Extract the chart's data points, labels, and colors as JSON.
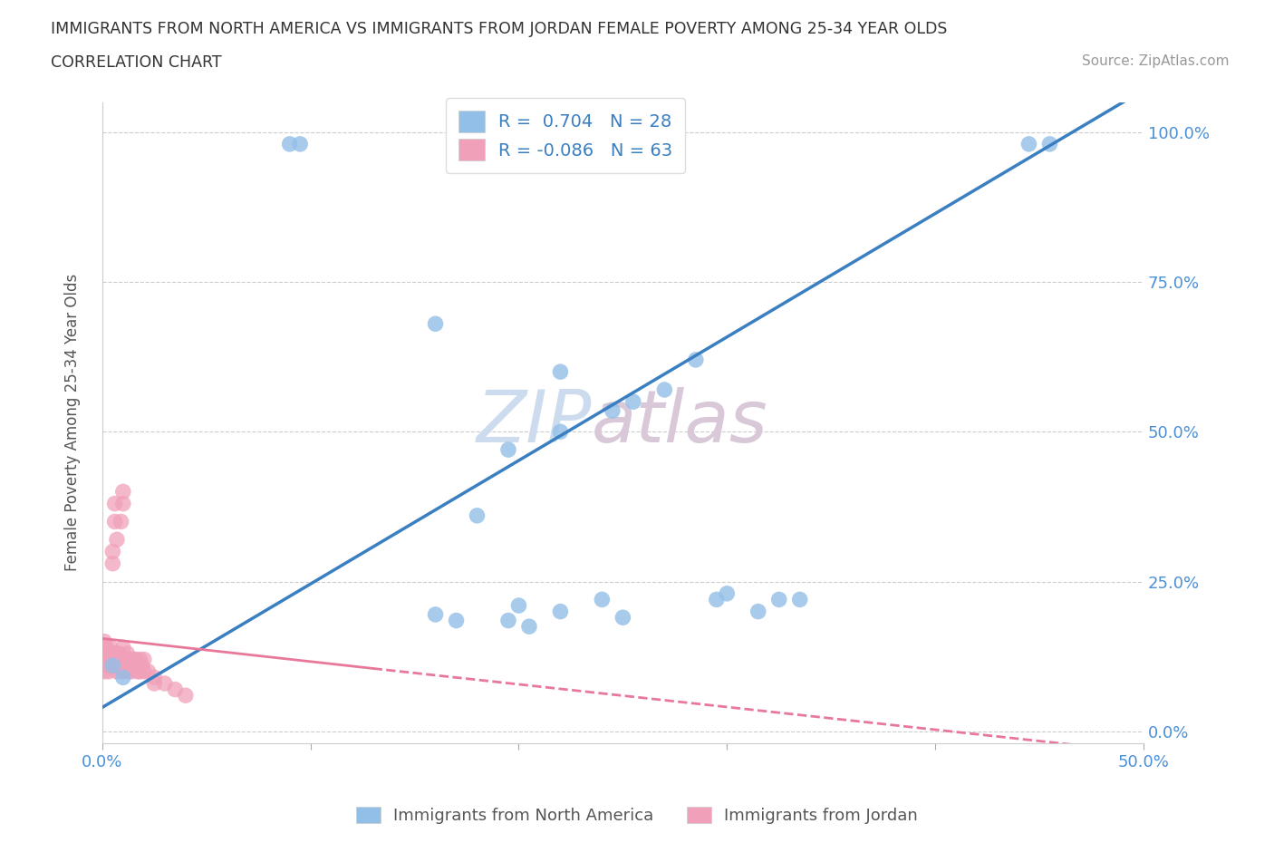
{
  "title_line1": "IMMIGRANTS FROM NORTH AMERICA VS IMMIGRANTS FROM JORDAN FEMALE POVERTY AMONG 25-34 YEAR OLDS",
  "title_line2": "CORRELATION CHART",
  "source": "Source: ZipAtlas.com",
  "ylabel": "Female Poverty Among 25-34 Year Olds",
  "xlim": [
    0.0,
    0.5
  ],
  "ylim": [
    -0.02,
    1.05
  ],
  "r_north_america": 0.704,
  "n_north_america": 28,
  "r_jordan": -0.086,
  "n_jordan": 63,
  "color_north_america": "#92bfe8",
  "color_jordan": "#f0a0b8",
  "color_line_north_america": "#3a7fc1",
  "color_line_jordan": "#e8789a",
  "watermark_zip": "ZIP",
  "watermark_atlas": "atlas",
  "na_x": [
    0.005,
    0.01,
    0.16,
    0.22,
    0.245,
    0.255,
    0.22,
    0.195,
    0.27,
    0.285,
    0.295,
    0.3,
    0.315,
    0.325,
    0.335,
    0.18,
    0.2,
    0.22,
    0.25,
    0.24,
    0.16,
    0.17,
    0.195,
    0.205,
    0.09,
    0.095,
    0.445,
    0.455
  ],
  "na_y": [
    0.11,
    0.09,
    0.68,
    0.6,
    0.535,
    0.55,
    0.5,
    0.47,
    0.57,
    0.62,
    0.22,
    0.23,
    0.2,
    0.22,
    0.22,
    0.36,
    0.21,
    0.2,
    0.19,
    0.22,
    0.195,
    0.185,
    0.185,
    0.175,
    0.98,
    0.98,
    0.98,
    0.98
  ],
  "jo_x": [
    0.001,
    0.001,
    0.001,
    0.001,
    0.001,
    0.002,
    0.002,
    0.002,
    0.003,
    0.003,
    0.003,
    0.004,
    0.004,
    0.004,
    0.005,
    0.005,
    0.005,
    0.005,
    0.006,
    0.006,
    0.006,
    0.007,
    0.007,
    0.007,
    0.007,
    0.007,
    0.008,
    0.008,
    0.008,
    0.009,
    0.009,
    0.009,
    0.01,
    0.01,
    0.01,
    0.01,
    0.01,
    0.01,
    0.011,
    0.011,
    0.012,
    0.012,
    0.012,
    0.013,
    0.013,
    0.014,
    0.014,
    0.015,
    0.015,
    0.016,
    0.017,
    0.017,
    0.018,
    0.018,
    0.019,
    0.02,
    0.02,
    0.022,
    0.025,
    0.025,
    0.03,
    0.035,
    0.04
  ],
  "jo_y": [
    0.11,
    0.12,
    0.14,
    0.15,
    0.1,
    0.12,
    0.14,
    0.11,
    0.12,
    0.13,
    0.1,
    0.12,
    0.14,
    0.11,
    0.28,
    0.3,
    0.12,
    0.13,
    0.35,
    0.38,
    0.11,
    0.32,
    0.1,
    0.12,
    0.11,
    0.13,
    0.12,
    0.11,
    0.13,
    0.35,
    0.12,
    0.11,
    0.12,
    0.14,
    0.1,
    0.11,
    0.38,
    0.4,
    0.12,
    0.11,
    0.12,
    0.1,
    0.13,
    0.12,
    0.11,
    0.12,
    0.1,
    0.12,
    0.11,
    0.12,
    0.11,
    0.1,
    0.12,
    0.1,
    0.11,
    0.1,
    0.12,
    0.1,
    0.09,
    0.08,
    0.08,
    0.07,
    0.06
  ],
  "line_na_x0": 0.0,
  "line_na_y0": 0.04,
  "line_na_x1": 0.5,
  "line_na_y1": 1.07,
  "line_jo_solid_x0": 0.0,
  "line_jo_solid_y0": 0.155,
  "line_jo_solid_x1": 0.13,
  "line_jo_solid_y1": 0.105,
  "line_jo_dash_x0": 0.13,
  "line_jo_dash_y0": 0.105,
  "line_jo_dash_x1": 0.5,
  "line_jo_dash_y1": -0.035
}
